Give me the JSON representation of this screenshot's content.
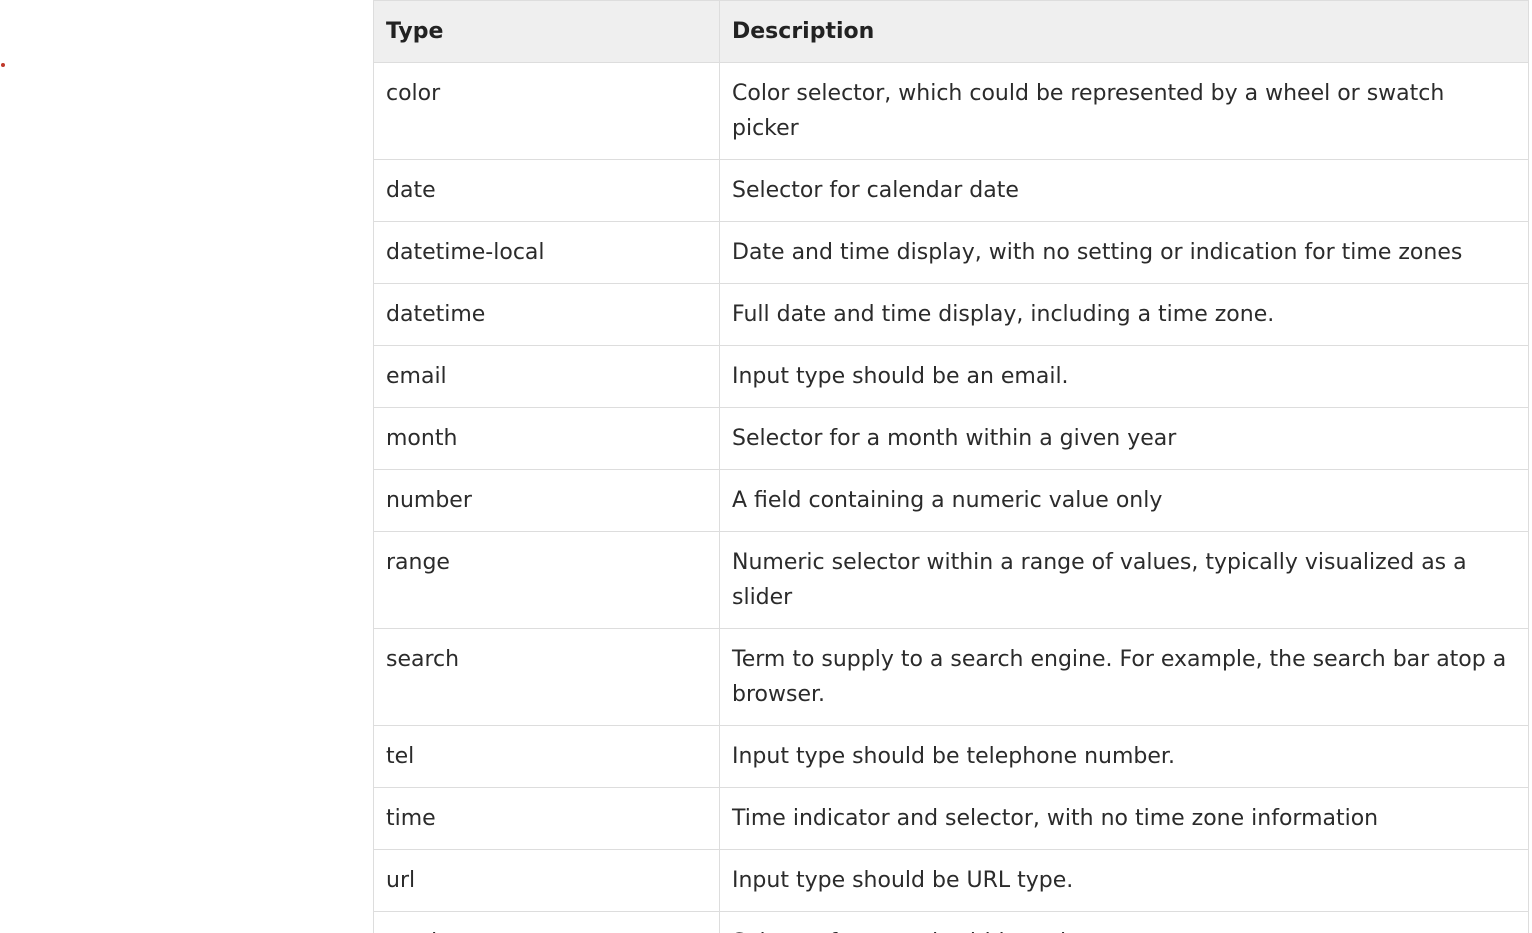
{
  "table": {
    "headers": [
      "Type",
      "Description"
    ],
    "rows": [
      {
        "type": "color",
        "description": "Color selector, which could be represented by a wheel or swatch picker"
      },
      {
        "type": "date",
        "description": "Selector for calendar date"
      },
      {
        "type": "datetime-local",
        "description": "Date and time display, with no setting or indication for time zones"
      },
      {
        "type": "datetime",
        "description": "Full date and time display, including a time zone."
      },
      {
        "type": "email",
        "description": "Input type should be an email."
      },
      {
        "type": "month",
        "description": "Selector for a month within a given year"
      },
      {
        "type": "number",
        "description": "A field containing a numeric value only"
      },
      {
        "type": "range",
        "description": "Numeric selector within a range of values, typically visualized as a slider"
      },
      {
        "type": "search",
        "description": "Term to supply to a search engine. For example, the search bar atop a browser."
      },
      {
        "type": "tel",
        "description": "Input type should be telephone number."
      },
      {
        "type": "time",
        "description": "Time indicator and selector, with no time zone information"
      },
      {
        "type": "url",
        "description": "Input type should be URL type."
      },
      {
        "type": "week",
        "description": "Selector for a week within a given year"
      }
    ]
  },
  "colors": {
    "header_bg": "#efefef",
    "border": "#dddddd",
    "text": "#2b2b2b",
    "dot": "#c0392b"
  }
}
